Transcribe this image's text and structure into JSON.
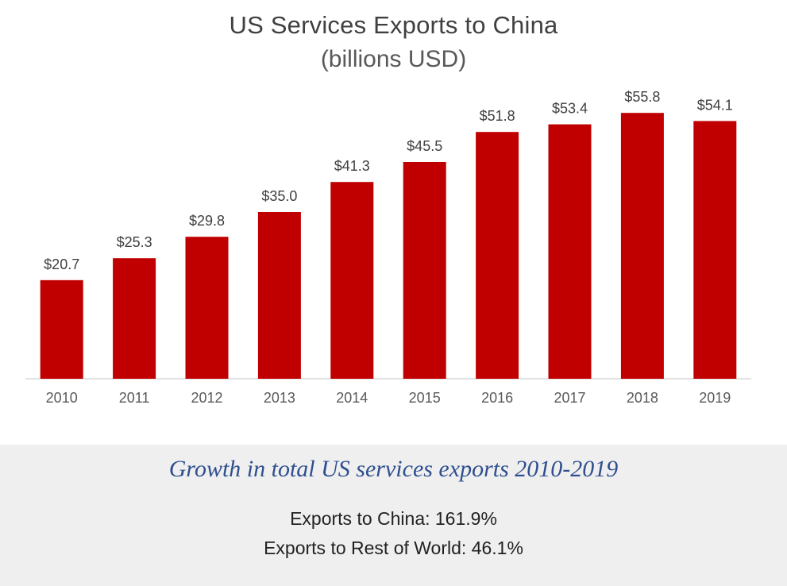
{
  "chart_data": {
    "type": "bar",
    "title": "US Services Exports to China",
    "subtitle": "(billions USD)",
    "categories": [
      "2010",
      "2011",
      "2012",
      "2013",
      "2014",
      "2015",
      "2016",
      "2017",
      "2018",
      "2019"
    ],
    "values": [
      20.7,
      25.3,
      29.8,
      35.0,
      41.3,
      45.5,
      51.8,
      53.4,
      55.8,
      54.1
    ],
    "data_labels": [
      "$20.7",
      "$25.3",
      "$29.8",
      "$35.0",
      "$41.3",
      "$45.5",
      "$51.8",
      "$53.4",
      "$55.8",
      "$54.1"
    ],
    "xlabel": "",
    "ylabel": "",
    "ylim": [
      0,
      60
    ],
    "grid": false,
    "legend": "none",
    "bar_color": "#c00000"
  },
  "summary": {
    "heading": "Growth in total US services exports 2010-2019",
    "china_line": "Exports to China: 161.9%",
    "row_line": "Exports to Rest of World: 46.1%"
  }
}
